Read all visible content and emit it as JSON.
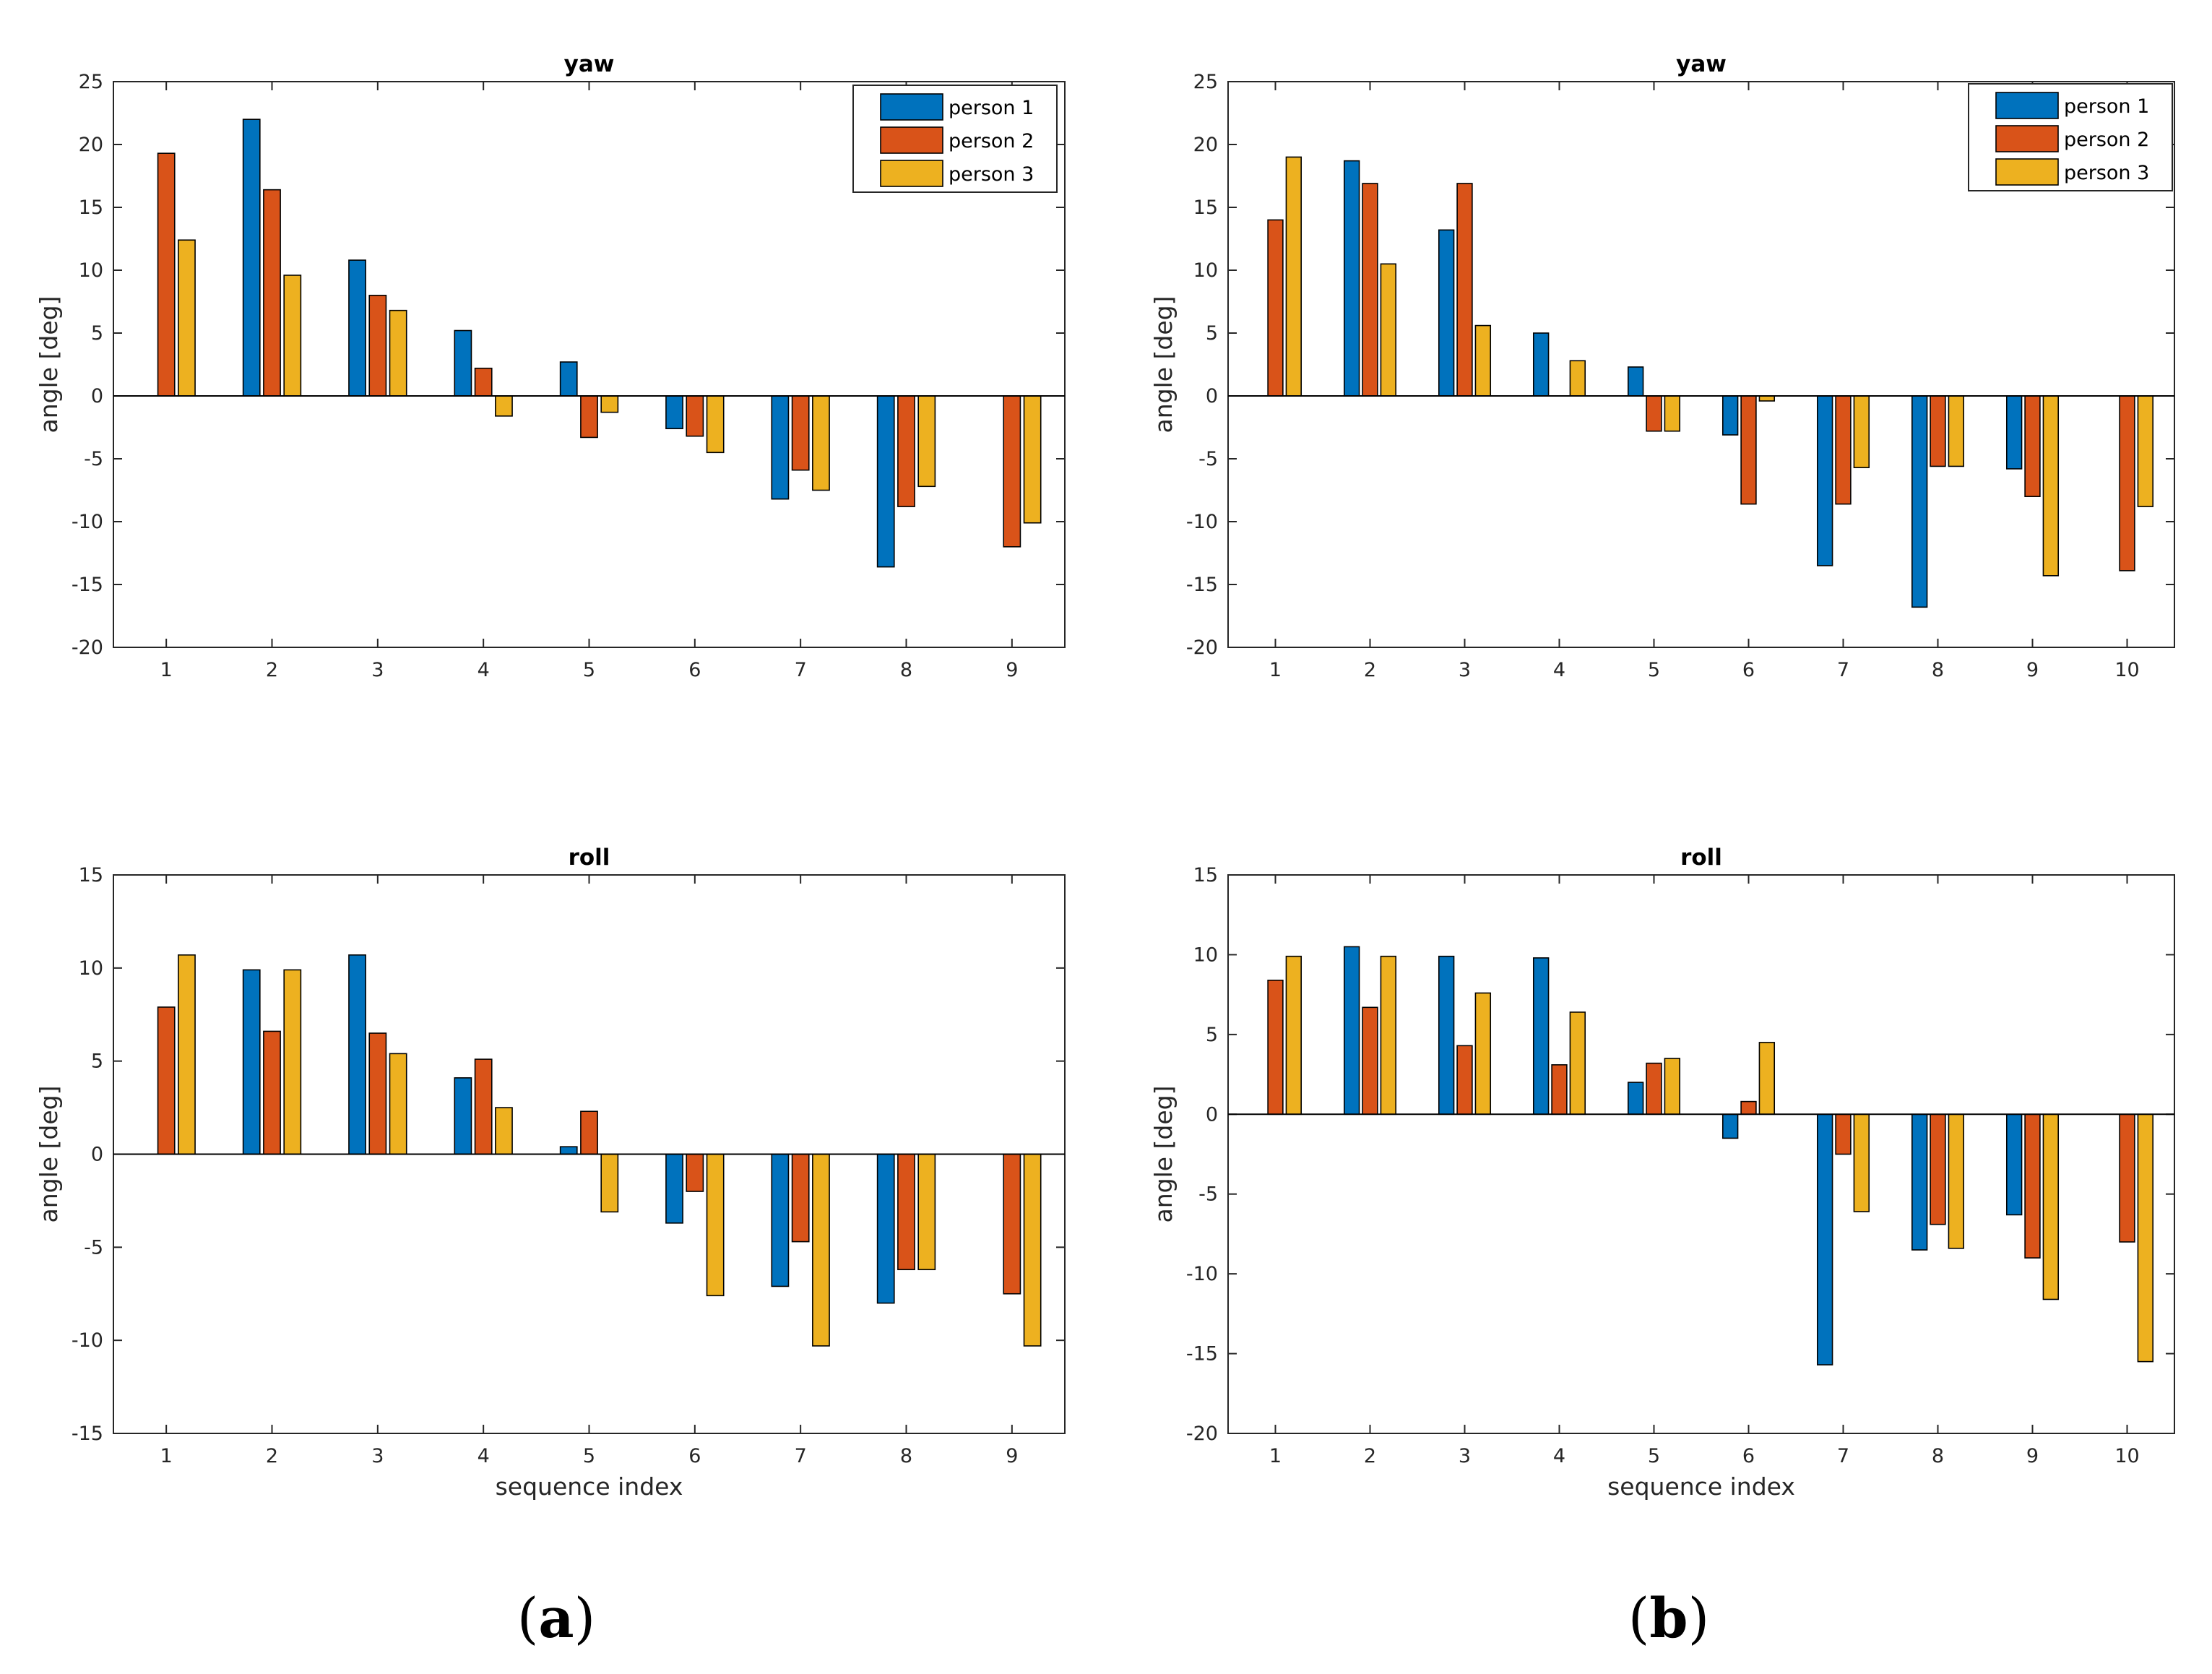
{
  "colors": {
    "series": [
      "#0072BD",
      "#D95319",
      "#EDB120"
    ],
    "axis": "#262626",
    "edge": "#000000"
  },
  "captions": [
    {
      "id": "a",
      "open": "(",
      "letter": "a",
      "close": ")"
    },
    {
      "id": "b",
      "open": "(",
      "letter": "b",
      "close": ")"
    }
  ],
  "chart_data": [
    {
      "type": "bar",
      "title": "yaw",
      "xlabel": "",
      "ylabel": "angle [deg]",
      "categories": [
        "1",
        "2",
        "3",
        "4",
        "5",
        "6",
        "7",
        "8",
        "9"
      ],
      "ylim": [
        -20,
        25
      ],
      "yticks": [
        -20,
        -15,
        -10,
        -5,
        0,
        5,
        10,
        15,
        20,
        25
      ],
      "legend": "top-right",
      "series": [
        {
          "name": "person 1",
          "values": [
            0,
            22.0,
            10.8,
            5.2,
            2.7,
            -2.6,
            -8.2,
            -13.6,
            0
          ]
        },
        {
          "name": "person 2",
          "values": [
            19.3,
            16.4,
            8.0,
            2.2,
            -3.3,
            -3.2,
            -5.9,
            -8.8,
            -12.0
          ]
        },
        {
          "name": "person 3",
          "values": [
            12.4,
            9.6,
            6.8,
            -1.6,
            -1.3,
            -4.5,
            -7.5,
            -7.2,
            -10.1
          ]
        }
      ]
    },
    {
      "type": "bar",
      "title": "yaw",
      "xlabel": "",
      "ylabel": "angle [deg]",
      "categories": [
        "1",
        "2",
        "3",
        "4",
        "5",
        "6",
        "7",
        "8",
        "9",
        "10"
      ],
      "ylim": [
        -20,
        25
      ],
      "yticks": [
        -20,
        -15,
        -10,
        -5,
        0,
        5,
        10,
        15,
        20,
        25
      ],
      "legend": "top-right",
      "series": [
        {
          "name": "person 1",
          "values": [
            0,
            18.7,
            13.2,
            5.0,
            2.3,
            -3.1,
            -13.5,
            -16.8,
            -5.8,
            0
          ]
        },
        {
          "name": "person 2",
          "values": [
            14.0,
            16.9,
            16.9,
            0,
            -2.8,
            -8.6,
            -8.6,
            -5.6,
            -8.0,
            -13.9
          ]
        },
        {
          "name": "person 3",
          "values": [
            19.0,
            10.5,
            5.6,
            2.8,
            -2.8,
            -0.4,
            -5.7,
            -5.6,
            -14.3,
            -8.8
          ]
        }
      ]
    },
    {
      "type": "bar",
      "title": "roll",
      "xlabel": "sequence index",
      "ylabel": "angle [deg]",
      "categories": [
        "1",
        "2",
        "3",
        "4",
        "5",
        "6",
        "7",
        "8",
        "9"
      ],
      "ylim": [
        -15,
        15
      ],
      "yticks": [
        -15,
        -10,
        -5,
        0,
        5,
        10,
        15
      ],
      "series": [
        {
          "name": "person 1",
          "values": [
            0,
            9.9,
            10.7,
            4.1,
            0.4,
            -3.7,
            -7.1,
            -8.0,
            0
          ]
        },
        {
          "name": "person 2",
          "values": [
            7.9,
            6.6,
            6.5,
            5.1,
            2.3,
            -2.0,
            -4.7,
            -6.2,
            -7.5
          ]
        },
        {
          "name": "person 3",
          "values": [
            10.7,
            9.9,
            5.4,
            2.5,
            -3.1,
            -7.6,
            -10.3,
            -6.2,
            -10.3
          ]
        }
      ]
    },
    {
      "type": "bar",
      "title": "roll",
      "xlabel": "sequence index",
      "ylabel": "angle [deg]",
      "categories": [
        "1",
        "2",
        "3",
        "4",
        "5",
        "6",
        "7",
        "8",
        "9",
        "10"
      ],
      "ylim": [
        -20,
        15
      ],
      "yticks": [
        -20,
        -15,
        -10,
        -5,
        0,
        5,
        10,
        15
      ],
      "series": [
        {
          "name": "person 1",
          "values": [
            0,
            10.5,
            9.9,
            9.8,
            2.0,
            -1.5,
            -15.7,
            -8.5,
            -6.3,
            0
          ]
        },
        {
          "name": "person 2",
          "values": [
            8.4,
            6.7,
            4.3,
            3.1,
            3.2,
            0.8,
            -2.5,
            -6.9,
            -9.0,
            -8.0
          ]
        },
        {
          "name": "person 3",
          "values": [
            9.9,
            9.9,
            7.6,
            6.4,
            3.5,
            4.5,
            -6.1,
            -8.4,
            -11.6,
            -15.5
          ]
        }
      ]
    }
  ]
}
